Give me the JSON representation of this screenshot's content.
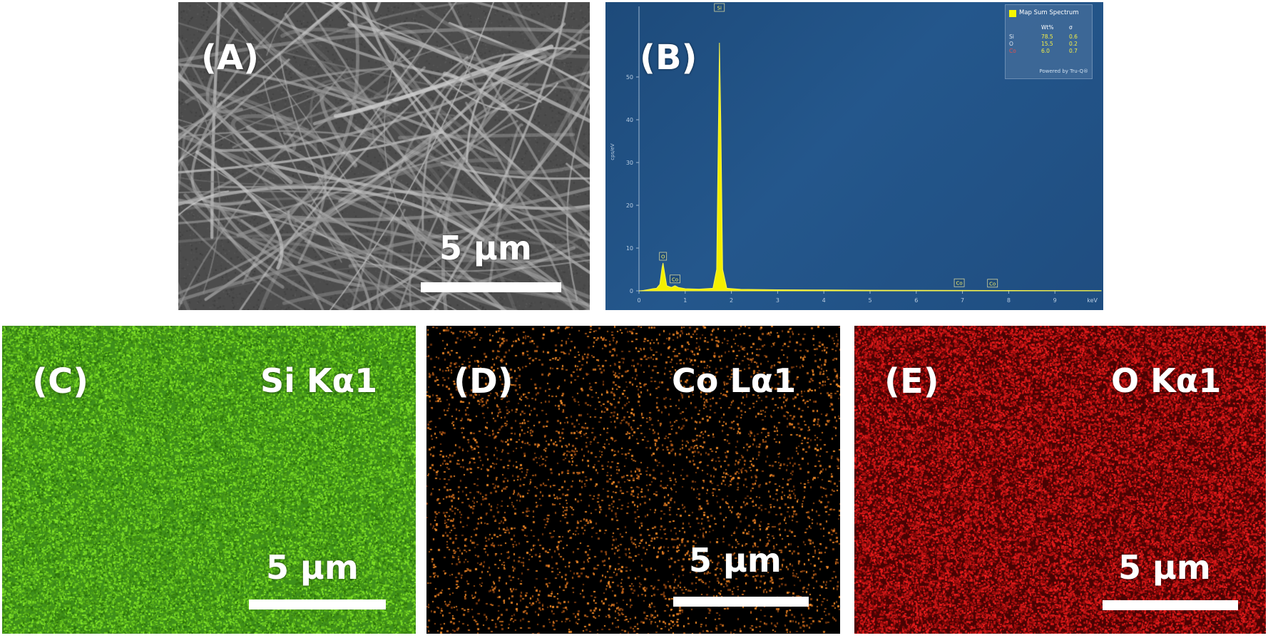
{
  "panels": {
    "a": {
      "label": "(A)",
      "scale": "5 μm"
    },
    "b": {
      "label": "(B)"
    },
    "c": {
      "label": "(C)",
      "element": "Si Kα1",
      "scale": "5 μm",
      "color": "#6bd82a"
    },
    "d": {
      "label": "(D)",
      "element": "Co Lα1",
      "scale": "5 μm",
      "color": "#e07a1f"
    },
    "e": {
      "label": "(E)",
      "element": "O Kα1",
      "scale": "5 μm",
      "color": "#d81c1c"
    }
  },
  "spectrum": {
    "legend_title": "Map Sum Spectrum",
    "col_wt": "Wt%",
    "col_sigma": "σ",
    "rows": [
      {
        "el": "Si",
        "wt": "78.5",
        "sigma": "0.6",
        "color": "#dfe8f2"
      },
      {
        "el": "O",
        "wt": "15.5",
        "sigma": "0.2",
        "color": "#dfe8f2"
      },
      {
        "el": "Co",
        "wt": "6.0",
        "sigma": "0.7",
        "color": "#e05050"
      }
    ],
    "powered": "Powered by Tru-Q®",
    "ylabel": "cps/eV",
    "xunit": "keV"
  },
  "chart_data": {
    "type": "line",
    "ylabel": "cps/eV",
    "xlabel": "keV",
    "xlim": [
      0,
      10
    ],
    "ylim": [
      0,
      55
    ],
    "x_ticks": [
      0,
      1,
      2,
      3,
      4,
      5,
      6,
      7,
      8,
      9
    ],
    "y_ticks": [
      0,
      10,
      20,
      30,
      40,
      50
    ],
    "peaks": [
      {
        "element": "O",
        "x": 0.52,
        "y": 6.5
      },
      {
        "element": "Co",
        "x": 0.78,
        "y": 1.2
      },
      {
        "element": "Si",
        "x": 1.74,
        "y": 58
      },
      {
        "element": "Co",
        "x": 6.93,
        "y": 0.3
      },
      {
        "element": "Co",
        "x": 7.65,
        "y": 0.2
      }
    ],
    "series": [
      {
        "values": [
          [
            0.0,
            0
          ],
          [
            0.1,
            0.1
          ],
          [
            0.2,
            0.3
          ],
          [
            0.3,
            0.5
          ],
          [
            0.38,
            0.6
          ],
          [
            0.45,
            1.5
          ],
          [
            0.5,
            5.5
          ],
          [
            0.52,
            6.5
          ],
          [
            0.55,
            4.5
          ],
          [
            0.6,
            1.2
          ],
          [
            0.7,
            0.8
          ],
          [
            0.78,
            1.2
          ],
          [
            0.85,
            0.8
          ],
          [
            1.0,
            0.5
          ],
          [
            1.3,
            0.4
          ],
          [
            1.6,
            0.6
          ],
          [
            1.68,
            5
          ],
          [
            1.72,
            40
          ],
          [
            1.74,
            58
          ],
          [
            1.77,
            40
          ],
          [
            1.81,
            5
          ],
          [
            1.9,
            0.6
          ],
          [
            2.2,
            0.35
          ],
          [
            3,
            0.25
          ],
          [
            4,
            0.2
          ],
          [
            5,
            0.15
          ],
          [
            6,
            0.12
          ],
          [
            7,
            0.1
          ],
          [
            8,
            0.08
          ],
          [
            9,
            0.06
          ],
          [
            10,
            0.05
          ]
        ]
      }
    ]
  }
}
